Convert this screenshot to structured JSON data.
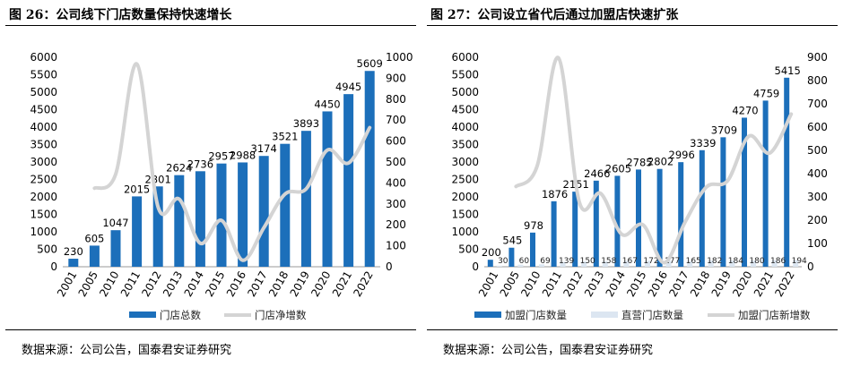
{
  "charts": [
    {
      "id": "left",
      "title": "图 26：公司线下门店数量保持快速增长",
      "source": "数据来源：公司公告，国泰君安证券研究",
      "legend": [
        "门店总数",
        "门店净增数"
      ],
      "colors": {
        "bar": "#1c6fba",
        "line": "#d4d4d4"
      }
    },
    {
      "id": "right",
      "title": "图 27：公司设立省代后通过加盟店快速扩张",
      "source": "数据来源：公司公告，国泰君安证券研究",
      "legend": [
        "加盟门店数量",
        "直营门店数量",
        "加盟门店新增数"
      ],
      "colors": {
        "bar": "#1c6fba",
        "bar2": "#dce6f1",
        "line": "#d4d4d4"
      }
    }
  ],
  "chart_data": [
    {
      "type": "bar",
      "categories": [
        "2001",
        "2005",
        "2010",
        "2011",
        "2012",
        "2013",
        "2014",
        "2015",
        "2016",
        "2017",
        "2018",
        "2019",
        "2020",
        "2021",
        "2022"
      ],
      "series": [
        {
          "name": "门店总数",
          "type": "bar",
          "axis": "left",
          "values": [
            230,
            605,
            1047,
            2015,
            2301,
            2624,
            2736,
            2957,
            2988,
            3174,
            3521,
            3893,
            4450,
            4945,
            5609
          ]
        },
        {
          "name": "门店净增数",
          "type": "line",
          "axis": "right",
          "values": [
            null,
            375,
            442,
            968,
            286,
            323,
            112,
            221,
            31,
            186,
            347,
            372,
            557,
            495,
            664
          ]
        }
      ],
      "y_left": {
        "ylim": [
          0,
          6000
        ],
        "ticks": [
          0,
          500,
          1000,
          1500,
          2000,
          2500,
          3000,
          3500,
          4000,
          4500,
          5000,
          5500,
          6000
        ]
      },
      "y_right": {
        "ylim": [
          0,
          1000
        ],
        "ticks": [
          0,
          100,
          200,
          300,
          400,
          500,
          600,
          700,
          800,
          900,
          1000
        ]
      },
      "legend_position": "bottom"
    },
    {
      "type": "bar",
      "categories": [
        "2001",
        "2005",
        "2010",
        "2011",
        "2012",
        "2013",
        "2014",
        "2015",
        "2016",
        "2017",
        "2018",
        "2019",
        "2020",
        "2021",
        "2022"
      ],
      "series": [
        {
          "name": "加盟门店数量",
          "type": "bar",
          "axis": "left",
          "values": [
            200,
            545,
            978,
            1876,
            2151,
            2466,
            2605,
            2785,
            2802,
            2996,
            3339,
            3709,
            4270,
            4759,
            5415
          ]
        },
        {
          "name": "直营门店数量",
          "type": "bar",
          "axis": "left",
          "values": [
            30,
            60,
            69,
            139,
            150,
            158,
            167,
            172,
            177,
            165,
            182,
            184,
            180,
            186,
            194
          ]
        },
        {
          "name": "加盟门店新增数",
          "type": "line",
          "axis": "right",
          "values": [
            null,
            345,
            433,
            898,
            275,
            315,
            139,
            180,
            17,
            194,
            343,
            370,
            561,
            489,
            656
          ]
        }
      ],
      "y_left": {
        "ylim": [
          0,
          6000
        ],
        "ticks": [
          0,
          500,
          1000,
          1500,
          2000,
          2500,
          3000,
          3500,
          4000,
          4500,
          5000,
          5500,
          6000
        ]
      },
      "y_right": {
        "ylim": [
          0,
          900
        ],
        "ticks": [
          0,
          100,
          200,
          300,
          400,
          500,
          600,
          700,
          800,
          900
        ]
      },
      "legend_position": "bottom"
    }
  ]
}
